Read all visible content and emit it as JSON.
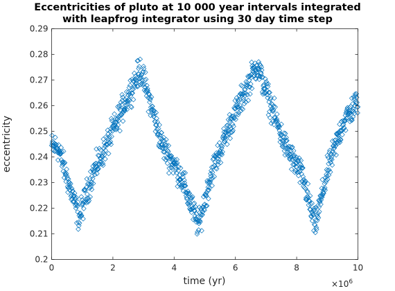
{
  "chart_data": {
    "type": "scatter",
    "title_lines": [
      "Eccentricities of pluto at 10 000 year intervals integrated",
      "with leapfrog integrator using 30 day time step"
    ],
    "xlabel": "time (yr)",
    "ylabel": "eccentricity",
    "x_multiplier_label": "×10",
    "x_multiplier_exponent": "6",
    "xlim": [
      0,
      10000000
    ],
    "ylim": [
      0.2,
      0.29
    ],
    "xticks": [
      0,
      2000000,
      4000000,
      6000000,
      8000000,
      10000000
    ],
    "xtick_labels": [
      "0",
      "2",
      "4",
      "6",
      "8",
      "10"
    ],
    "yticks": [
      0.2,
      0.21,
      0.22,
      0.23,
      0.24,
      0.25,
      0.26,
      0.27,
      0.28,
      0.29
    ],
    "ytick_labels": [
      "0.2",
      "0.21",
      "0.22",
      "0.23",
      "0.24",
      "0.25",
      "0.26",
      "0.27",
      "0.28",
      "0.29"
    ],
    "grid": false,
    "marker": "diamond",
    "marker_color": "#0072BD",
    "sample_interval_yr": 10000,
    "trend_points": [
      [
        0,
        0.244
      ],
      [
        200000,
        0.244
      ],
      [
        500000,
        0.232
      ],
      [
        900000,
        0.216
      ],
      [
        1300000,
        0.232
      ],
      [
        2000000,
        0.25
      ],
      [
        2500000,
        0.264
      ],
      [
        2900000,
        0.274
      ],
      [
        3200000,
        0.262
      ],
      [
        3600000,
        0.245
      ],
      [
        4200000,
        0.233
      ],
      [
        4800000,
        0.213
      ],
      [
        5200000,
        0.233
      ],
      [
        5800000,
        0.252
      ],
      [
        6300000,
        0.265
      ],
      [
        6700000,
        0.276
      ],
      [
        7100000,
        0.262
      ],
      [
        7600000,
        0.245
      ],
      [
        8200000,
        0.232
      ],
      [
        8600000,
        0.213
      ],
      [
        9000000,
        0.234
      ],
      [
        9500000,
        0.253
      ],
      [
        10000000,
        0.262
      ]
    ],
    "scatter_spread": 0.004
  }
}
